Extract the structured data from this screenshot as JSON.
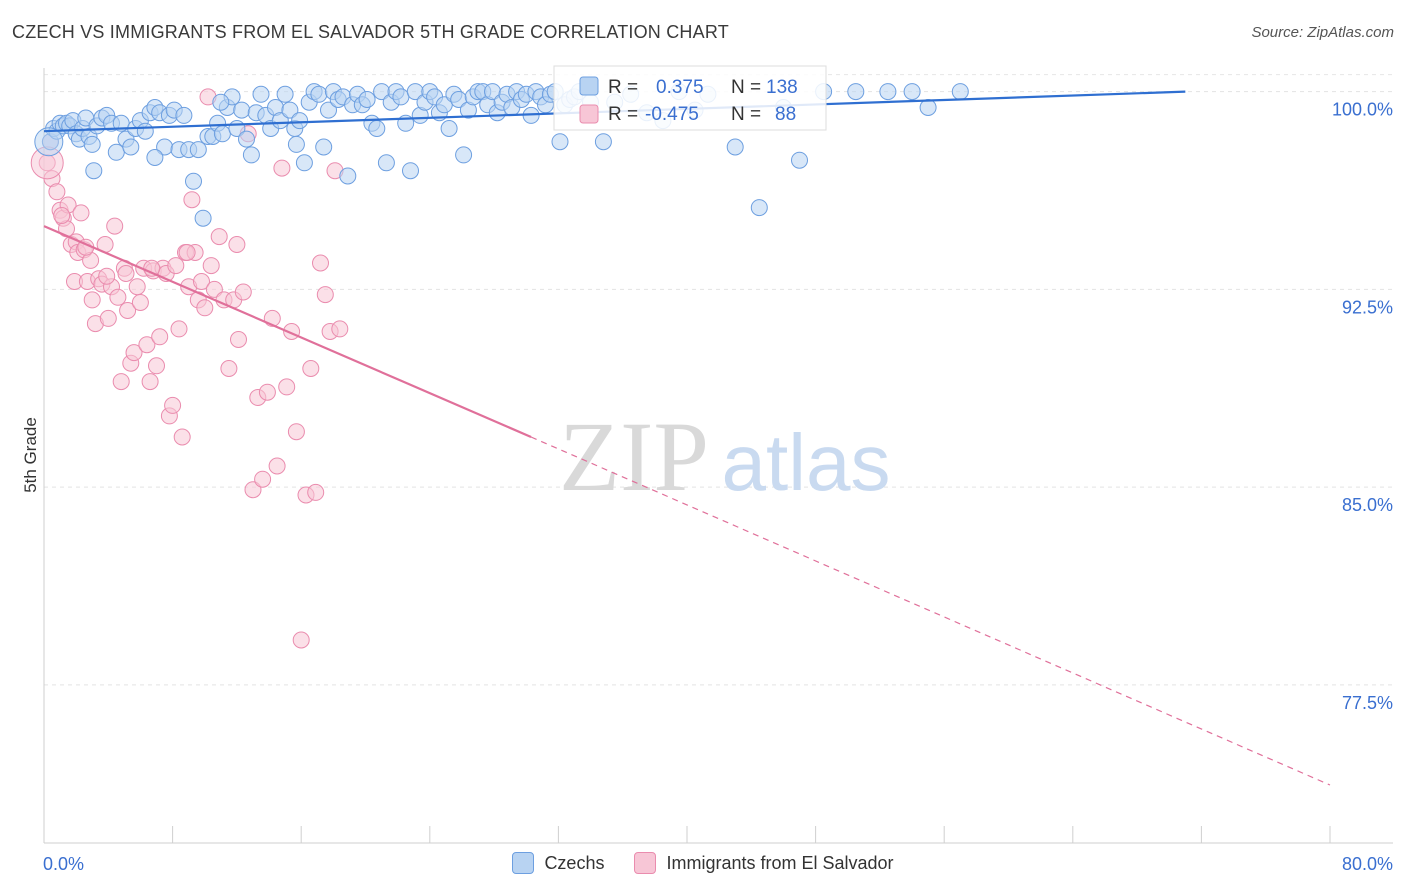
{
  "title": "CZECH VS IMMIGRANTS FROM EL SALVADOR 5TH GRADE CORRELATION CHART",
  "source": "Source: ZipAtlas.com",
  "watermark": {
    "zip": "ZIP",
    "atlas": "atlas"
  },
  "chart_data": {
    "type": "scatter",
    "ylabel": "5th Grade",
    "xlim": [
      0,
      80
    ],
    "ylim": [
      71.5,
      101.2
    ],
    "x_tick_labels": {
      "left": "0.0%",
      "right": "80.0%"
    },
    "y_ticks": [
      {
        "value": 100.0,
        "label": "100.0%"
      },
      {
        "value": 92.5,
        "label": "92.5%"
      },
      {
        "value": 85.0,
        "label": "85.0%"
      },
      {
        "value": 77.5,
        "label": "77.5%"
      }
    ],
    "legend": {
      "czech": {
        "r_label": "R =",
        "r_value": "0.375",
        "n_label": "N =",
        "n_value": "138"
      },
      "salvador": {
        "r_label": "R =",
        "r_value": "-0.475",
        "n_label": "N =",
        "n_value": "88"
      }
    },
    "series": [
      {
        "name": "Czechs",
        "color": "#6d9fe0",
        "fill": "#b8d3f2",
        "trend": {
          "x": [
            0,
            71
          ],
          "y": [
            98.5,
            100.0
          ],
          "dashed_to": null
        },
        "points": [
          [
            0.4,
            98.1
          ],
          [
            0.6,
            98.6
          ],
          [
            0.8,
            98.5
          ],
          [
            1.0,
            98.8
          ],
          [
            1.2,
            98.7
          ],
          [
            1.4,
            98.8
          ],
          [
            1.6,
            98.7
          ],
          [
            1.8,
            98.9
          ],
          [
            2.0,
            98.4
          ],
          [
            2.2,
            98.2
          ],
          [
            2.4,
            98.6
          ],
          [
            2.6,
            99.0
          ],
          [
            2.8,
            98.3
          ],
          [
            3.0,
            98.0
          ],
          [
            3.3,
            98.7
          ],
          [
            3.6,
            99.0
          ],
          [
            3.9,
            99.1
          ],
          [
            4.2,
            98.8
          ],
          [
            4.5,
            97.7
          ],
          [
            4.8,
            98.8
          ],
          [
            5.1,
            98.2
          ],
          [
            5.4,
            97.9
          ],
          [
            5.7,
            98.6
          ],
          [
            6.0,
            98.9
          ],
          [
            6.3,
            98.5
          ],
          [
            6.6,
            99.2
          ],
          [
            6.9,
            99.4
          ],
          [
            7.2,
            99.2
          ],
          [
            7.5,
            97.9
          ],
          [
            7.8,
            99.1
          ],
          [
            8.1,
            99.3
          ],
          [
            8.4,
            97.8
          ],
          [
            8.7,
            99.1
          ],
          [
            9.0,
            97.8
          ],
          [
            9.3,
            96.6
          ],
          [
            9.6,
            97.8
          ],
          [
            9.9,
            95.2
          ],
          [
            10.2,
            98.3
          ],
          [
            10.5,
            98.3
          ],
          [
            10.8,
            98.8
          ],
          [
            11.1,
            98.4
          ],
          [
            11.4,
            99.4
          ],
          [
            11.7,
            99.8
          ],
          [
            12.0,
            98.6
          ],
          [
            12.3,
            99.3
          ],
          [
            12.6,
            98.2
          ],
          [
            12.9,
            97.6
          ],
          [
            13.2,
            99.2
          ],
          [
            13.5,
            99.9
          ],
          [
            13.8,
            99.1
          ],
          [
            14.1,
            98.6
          ],
          [
            14.4,
            99.4
          ],
          [
            14.7,
            98.9
          ],
          [
            15.0,
            99.9
          ],
          [
            15.3,
            99.3
          ],
          [
            15.6,
            98.6
          ],
          [
            15.9,
            98.9
          ],
          [
            16.2,
            97.3
          ],
          [
            16.5,
            99.6
          ],
          [
            16.8,
            100.0
          ],
          [
            17.1,
            99.9
          ],
          [
            17.4,
            97.9
          ],
          [
            17.7,
            99.3
          ],
          [
            18.0,
            100.0
          ],
          [
            18.3,
            99.7
          ],
          [
            18.6,
            99.8
          ],
          [
            18.9,
            96.8
          ],
          [
            19.2,
            99.5
          ],
          [
            19.5,
            99.9
          ],
          [
            19.8,
            99.5
          ],
          [
            20.1,
            99.7
          ],
          [
            20.4,
            98.8
          ],
          [
            20.7,
            98.6
          ],
          [
            21.0,
            100.0
          ],
          [
            21.3,
            97.3
          ],
          [
            21.6,
            99.6
          ],
          [
            21.9,
            100.0
          ],
          [
            22.2,
            99.8
          ],
          [
            22.5,
            98.8
          ],
          [
            22.8,
            97.0
          ],
          [
            23.1,
            100.0
          ],
          [
            23.4,
            99.1
          ],
          [
            23.7,
            99.6
          ],
          [
            24.0,
            100.0
          ],
          [
            24.3,
            99.8
          ],
          [
            24.6,
            99.2
          ],
          [
            24.9,
            99.5
          ],
          [
            25.2,
            98.6
          ],
          [
            25.5,
            99.9
          ],
          [
            25.8,
            99.7
          ],
          [
            26.1,
            97.6
          ],
          [
            26.4,
            99.3
          ],
          [
            26.7,
            99.8
          ],
          [
            27.0,
            100.0
          ],
          [
            27.3,
            100.0
          ],
          [
            27.6,
            99.5
          ],
          [
            27.9,
            100.0
          ],
          [
            28.2,
            99.2
          ],
          [
            28.5,
            99.6
          ],
          [
            28.8,
            99.9
          ],
          [
            29.1,
            99.4
          ],
          [
            29.4,
            100.0
          ],
          [
            29.7,
            99.7
          ],
          [
            30.0,
            99.9
          ],
          [
            30.3,
            99.1
          ],
          [
            30.6,
            100.0
          ],
          [
            30.9,
            99.8
          ],
          [
            31.2,
            99.5
          ],
          [
            31.5,
            99.9
          ],
          [
            31.8,
            100.0
          ],
          [
            32.1,
            98.1
          ],
          [
            32.4,
            99.5
          ],
          [
            32.7,
            99.7
          ],
          [
            33.0,
            99.8
          ],
          [
            33.3,
            100.0
          ],
          [
            34.0,
            99.6
          ],
          [
            34.8,
            98.1
          ],
          [
            35.5,
            99.6
          ],
          [
            36.5,
            99.9
          ],
          [
            37.5,
            99.2
          ],
          [
            38.5,
            98.9
          ],
          [
            39.5,
            100.0
          ],
          [
            40.5,
            99.3
          ],
          [
            41.3,
            99.9
          ],
          [
            43.0,
            97.9
          ],
          [
            44.5,
            95.6
          ],
          [
            46.0,
            99.4
          ],
          [
            47.0,
            97.4
          ],
          [
            48.5,
            100.0
          ],
          [
            50.5,
            100.0
          ],
          [
            52.5,
            100.0
          ],
          [
            54.0,
            100.0
          ],
          [
            55.0,
            99.4
          ],
          [
            57.0,
            100.0
          ],
          [
            3.1,
            97.0
          ],
          [
            6.9,
            97.5
          ],
          [
            11.0,
            99.6
          ],
          [
            15.7,
            98.0
          ]
        ]
      },
      {
        "name": "Immigrants from El Salvador",
        "color": "#ea8cae",
        "fill": "#f7c6d6",
        "trend": {
          "x": [
            0,
            30.3
          ],
          "y": [
            94.9,
            86.9
          ],
          "dashed_to": {
            "x": 80,
            "y": 73.7
          }
        },
        "points": [
          [
            0.2,
            97.3
          ],
          [
            0.4,
            98.1
          ],
          [
            0.5,
            96.7
          ],
          [
            0.8,
            96.2
          ],
          [
            1.0,
            95.5
          ],
          [
            1.2,
            95.2
          ],
          [
            1.4,
            94.8
          ],
          [
            1.5,
            95.7
          ],
          [
            1.7,
            94.2
          ],
          [
            1.9,
            92.8
          ],
          [
            2.0,
            94.3
          ],
          [
            2.1,
            93.9
          ],
          [
            2.3,
            95.4
          ],
          [
            2.5,
            94.0
          ],
          [
            2.7,
            92.8
          ],
          [
            2.9,
            93.6
          ],
          [
            3.0,
            92.1
          ],
          [
            3.2,
            91.2
          ],
          [
            3.4,
            92.9
          ],
          [
            3.6,
            92.7
          ],
          [
            3.8,
            94.2
          ],
          [
            4.0,
            91.4
          ],
          [
            4.2,
            92.6
          ],
          [
            4.4,
            94.9
          ],
          [
            4.6,
            92.2
          ],
          [
            4.8,
            89.0
          ],
          [
            5.0,
            93.3
          ],
          [
            5.2,
            91.7
          ],
          [
            5.4,
            89.7
          ],
          [
            5.6,
            90.1
          ],
          [
            5.8,
            92.6
          ],
          [
            6.0,
            92.0
          ],
          [
            6.2,
            93.3
          ],
          [
            6.4,
            90.4
          ],
          [
            6.6,
            89.0
          ],
          [
            6.8,
            93.2
          ],
          [
            7.0,
            89.6
          ],
          [
            7.2,
            90.7
          ],
          [
            7.4,
            93.3
          ],
          [
            7.6,
            93.1
          ],
          [
            7.8,
            87.7
          ],
          [
            8.0,
            88.1
          ],
          [
            8.2,
            93.4
          ],
          [
            8.4,
            91.0
          ],
          [
            8.6,
            86.9
          ],
          [
            8.8,
            93.9
          ],
          [
            9.0,
            92.6
          ],
          [
            9.2,
            95.9
          ],
          [
            9.4,
            93.9
          ],
          [
            9.6,
            92.1
          ],
          [
            9.8,
            92.8
          ],
          [
            10.0,
            91.8
          ],
          [
            10.2,
            99.8
          ],
          [
            10.4,
            93.4
          ],
          [
            10.6,
            92.5
          ],
          [
            10.9,
            94.5
          ],
          [
            11.2,
            92.1
          ],
          [
            11.5,
            89.5
          ],
          [
            11.8,
            92.1
          ],
          [
            12.1,
            90.6
          ],
          [
            12.4,
            92.4
          ],
          [
            12.7,
            98.4
          ],
          [
            13.0,
            84.9
          ],
          [
            13.3,
            88.4
          ],
          [
            13.6,
            85.3
          ],
          [
            13.9,
            88.6
          ],
          [
            14.2,
            91.4
          ],
          [
            14.5,
            85.8
          ],
          [
            14.8,
            97.1
          ],
          [
            15.1,
            88.8
          ],
          [
            15.4,
            90.9
          ],
          [
            15.7,
            87.1
          ],
          [
            16.0,
            79.2
          ],
          [
            16.3,
            84.7
          ],
          [
            16.6,
            89.5
          ],
          [
            16.9,
            84.8
          ],
          [
            17.2,
            93.5
          ],
          [
            17.5,
            92.3
          ],
          [
            17.8,
            90.9
          ],
          [
            18.1,
            97.0
          ],
          [
            18.4,
            91.0
          ],
          [
            2.6,
            94.1
          ],
          [
            3.9,
            93.0
          ],
          [
            5.1,
            93.1
          ],
          [
            6.7,
            93.3
          ],
          [
            8.9,
            93.9
          ],
          [
            12.0,
            94.2
          ],
          [
            1.1,
            95.3
          ]
        ]
      }
    ]
  }
}
